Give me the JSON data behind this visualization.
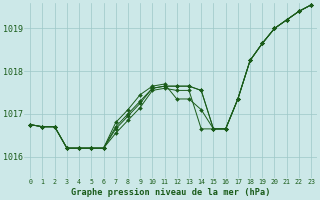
{
  "xlabel": "Graphe pression niveau de la mer (hPa)",
  "ylim": [
    1015.5,
    1019.6
  ],
  "xlim": [
    -0.5,
    23.5
  ],
  "yticks": [
    1016,
    1017,
    1018,
    1019
  ],
  "xticks": [
    0,
    1,
    2,
    3,
    4,
    5,
    6,
    7,
    8,
    9,
    10,
    11,
    12,
    13,
    14,
    15,
    16,
    17,
    18,
    19,
    20,
    21,
    22,
    23
  ],
  "bg_color": "#cce8e8",
  "line_color": "#1a5c1a",
  "grid_color": "#9dc8c8",
  "series": [
    [
      1016.75,
      1016.7,
      1016.7,
      1016.2,
      1016.2,
      1016.2,
      1016.2,
      1016.55,
      1016.85,
      1017.15,
      1017.55,
      1017.6,
      1017.55,
      1017.55,
      1016.65,
      1016.65,
      1016.65,
      1017.35,
      1018.25,
      1018.65,
      1019.0,
      1019.2,
      1019.4,
      1019.55
    ],
    [
      1016.75,
      1016.7,
      1016.7,
      1016.2,
      1016.2,
      1016.2,
      1016.2,
      1016.65,
      1016.95,
      1017.25,
      1017.6,
      1017.65,
      1017.65,
      1017.65,
      1017.55,
      1016.65,
      1016.65,
      1017.35,
      1018.25,
      1018.65,
      1019.0,
      1019.2,
      1019.4,
      1019.55
    ],
    [
      1016.75,
      1016.7,
      1016.7,
      1016.2,
      1016.2,
      1016.2,
      1016.2,
      1016.7,
      1017.0,
      1017.3,
      1017.6,
      1017.65,
      1017.65,
      1017.65,
      1017.55,
      1016.65,
      1016.65,
      1017.35,
      1018.25,
      1018.65,
      1019.0,
      1019.2,
      1019.4,
      1019.55
    ],
    [
      1016.75,
      1016.7,
      1016.7,
      1016.2,
      1016.2,
      1016.2,
      1016.2,
      1016.8,
      1017.1,
      1017.45,
      1017.65,
      1017.7,
      1017.35,
      1017.35,
      1017.1,
      1016.65,
      1016.65,
      1017.35,
      1018.25,
      1018.65,
      1019.0,
      1019.2,
      1019.4,
      1019.55
    ]
  ]
}
